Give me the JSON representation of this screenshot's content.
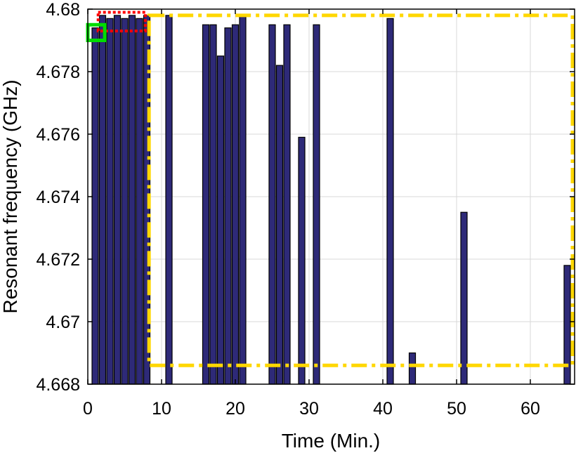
{
  "chart_data": {
    "type": "bar",
    "title": "",
    "xlabel": "Time (Min.)",
    "ylabel": "Resonant frequency (GHz)",
    "xlim": [
      0,
      66
    ],
    "ylim": [
      4.668,
      4.68
    ],
    "x_ticks": [
      0,
      10,
      20,
      30,
      40,
      50,
      60
    ],
    "x_tick_labels": [
      "0",
      "10",
      "20",
      "30",
      "40",
      "50",
      "60"
    ],
    "y_ticks": [
      4.668,
      4.67,
      4.672,
      4.674,
      4.676,
      4.678,
      4.68
    ],
    "y_tick_labels": [
      "4.668",
      "4.67",
      "4.672",
      "4.674",
      "4.676",
      "4.678",
      "4.68"
    ],
    "grid": true,
    "bar_color": "#2e2a78",
    "bar_edge_color": "#000000",
    "series": [
      {
        "x": [
          1,
          2,
          3,
          4,
          5,
          6,
          7,
          8,
          11,
          16,
          17,
          18,
          19,
          20,
          21,
          25,
          26,
          27,
          29,
          31,
          41,
          44,
          51,
          65
        ],
        "values": [
          4.6794,
          4.6798,
          4.6797,
          4.6798,
          4.6797,
          4.6798,
          4.6797,
          4.6798,
          4.6798,
          4.6795,
          4.6795,
          4.6785,
          4.6794,
          4.6795,
          4.6798,
          4.6795,
          4.6782,
          4.6795,
          4.6759,
          4.6795,
          4.6797,
          4.669,
          4.6735,
          4.6718
        ]
      }
    ],
    "annotations": [
      {
        "shape": "rectangle",
        "style": "dash-dot",
        "color": "#ffd700",
        "x_range": [
          8.3,
          66
        ],
        "y_range": [
          4.6686,
          4.6798
        ]
      },
      {
        "shape": "rectangle",
        "style": "dotted",
        "color": "#ff0000",
        "x_range": [
          1.4,
          7.8
        ],
        "y_range": [
          4.6793,
          4.6799
        ]
      },
      {
        "shape": "square",
        "style": "solid",
        "color": "#00dd00",
        "x_range": [
          0,
          2.3
        ],
        "y_range": [
          4.679,
          4.6795
        ]
      }
    ]
  }
}
